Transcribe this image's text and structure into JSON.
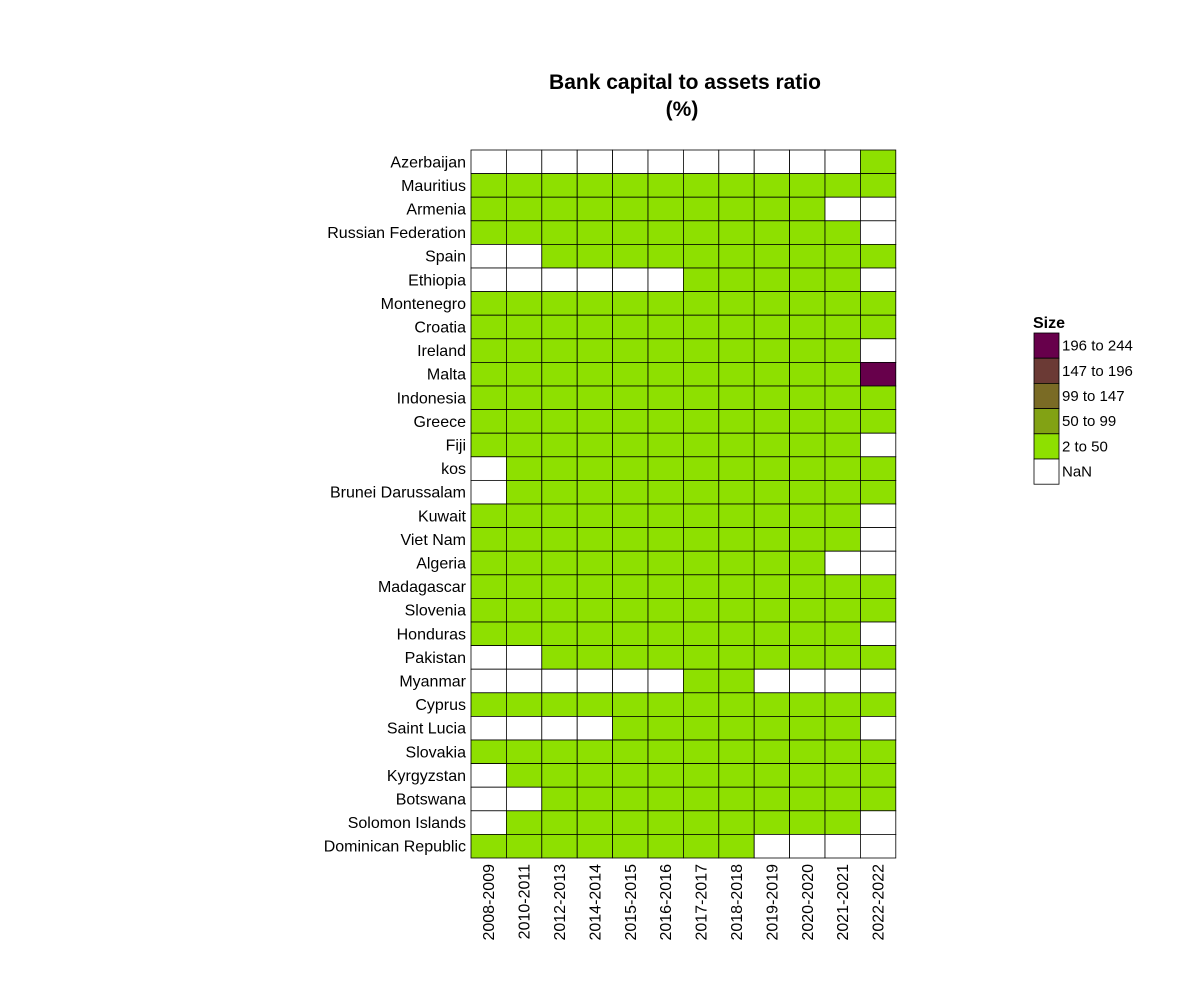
{
  "chart_data": {
    "type": "heatmap",
    "title": "Bank capital to assets ratio",
    "subtitle": "(%)",
    "columns": [
      "2008-2009",
      "2010-2011",
      "2012-2013",
      "2014-2014",
      "2015-2015",
      "2016-2016",
      "2017-2017",
      "2018-2018",
      "2019-2019",
      "2020-2020",
      "2021-2021",
      "2022-2022"
    ],
    "rows": [
      "Azerbaijan",
      "Mauritius",
      "Armenia",
      "Russian Federation",
      "Spain",
      "Ethiopia",
      "Montenegro",
      "Croatia",
      "Ireland",
      "Malta",
      "Indonesia",
      "Greece",
      "Fiji",
      "kos",
      "Brunei Darussalam",
      "Kuwait",
      "Viet Nam",
      "Algeria",
      "Madagascar",
      "Slovenia",
      "Honduras",
      "Pakistan",
      "Myanmar",
      "Cyprus",
      "Saint Lucia",
      "Slovakia",
      "Kyrgyzstan",
      "Botswana",
      "Solomon Islands",
      "Dominican Republic"
    ],
    "cells": [
      [
        "NaN",
        "NaN",
        "NaN",
        "NaN",
        "NaN",
        "NaN",
        "NaN",
        "NaN",
        "NaN",
        "NaN",
        "NaN",
        "2 to 50"
      ],
      [
        "2 to 50",
        "2 to 50",
        "2 to 50",
        "2 to 50",
        "2 to 50",
        "2 to 50",
        "2 to 50",
        "2 to 50",
        "2 to 50",
        "2 to 50",
        "2 to 50",
        "2 to 50"
      ],
      [
        "2 to 50",
        "2 to 50",
        "2 to 50",
        "2 to 50",
        "2 to 50",
        "2 to 50",
        "2 to 50",
        "2 to 50",
        "2 to 50",
        "2 to 50",
        "NaN",
        "NaN"
      ],
      [
        "2 to 50",
        "2 to 50",
        "2 to 50",
        "2 to 50",
        "2 to 50",
        "2 to 50",
        "2 to 50",
        "2 to 50",
        "2 to 50",
        "2 to 50",
        "2 to 50",
        "NaN"
      ],
      [
        "NaN",
        "NaN",
        "2 to 50",
        "2 to 50",
        "2 to 50",
        "2 to 50",
        "2 to 50",
        "2 to 50",
        "2 to 50",
        "2 to 50",
        "2 to 50",
        "2 to 50"
      ],
      [
        "NaN",
        "NaN",
        "NaN",
        "NaN",
        "NaN",
        "NaN",
        "2 to 50",
        "2 to 50",
        "2 to 50",
        "2 to 50",
        "2 to 50",
        "NaN"
      ],
      [
        "2 to 50",
        "2 to 50",
        "2 to 50",
        "2 to 50",
        "2 to 50",
        "2 to 50",
        "2 to 50",
        "2 to 50",
        "2 to 50",
        "2 to 50",
        "2 to 50",
        "2 to 50"
      ],
      [
        "2 to 50",
        "2 to 50",
        "2 to 50",
        "2 to 50",
        "2 to 50",
        "2 to 50",
        "2 to 50",
        "2 to 50",
        "2 to 50",
        "2 to 50",
        "2 to 50",
        "2 to 50"
      ],
      [
        "2 to 50",
        "2 to 50",
        "2 to 50",
        "2 to 50",
        "2 to 50",
        "2 to 50",
        "2 to 50",
        "2 to 50",
        "2 to 50",
        "2 to 50",
        "2 to 50",
        "NaN"
      ],
      [
        "2 to 50",
        "2 to 50",
        "2 to 50",
        "2 to 50",
        "2 to 50",
        "2 to 50",
        "2 to 50",
        "2 to 50",
        "2 to 50",
        "2 to 50",
        "2 to 50",
        "196 to 244"
      ],
      [
        "2 to 50",
        "2 to 50",
        "2 to 50",
        "2 to 50",
        "2 to 50",
        "2 to 50",
        "2 to 50",
        "2 to 50",
        "2 to 50",
        "2 to 50",
        "2 to 50",
        "2 to 50"
      ],
      [
        "2 to 50",
        "2 to 50",
        "2 to 50",
        "2 to 50",
        "2 to 50",
        "2 to 50",
        "2 to 50",
        "2 to 50",
        "2 to 50",
        "2 to 50",
        "2 to 50",
        "2 to 50"
      ],
      [
        "2 to 50",
        "2 to 50",
        "2 to 50",
        "2 to 50",
        "2 to 50",
        "2 to 50",
        "2 to 50",
        "2 to 50",
        "2 to 50",
        "2 to 50",
        "2 to 50",
        "NaN"
      ],
      [
        "NaN",
        "2 to 50",
        "2 to 50",
        "2 to 50",
        "2 to 50",
        "2 to 50",
        "2 to 50",
        "2 to 50",
        "2 to 50",
        "2 to 50",
        "2 to 50",
        "2 to 50"
      ],
      [
        "NaN",
        "2 to 50",
        "2 to 50",
        "2 to 50",
        "2 to 50",
        "2 to 50",
        "2 to 50",
        "2 to 50",
        "2 to 50",
        "2 to 50",
        "2 to 50",
        "2 to 50"
      ],
      [
        "2 to 50",
        "2 to 50",
        "2 to 50",
        "2 to 50",
        "2 to 50",
        "2 to 50",
        "2 to 50",
        "2 to 50",
        "2 to 50",
        "2 to 50",
        "2 to 50",
        "NaN"
      ],
      [
        "2 to 50",
        "2 to 50",
        "2 to 50",
        "2 to 50",
        "2 to 50",
        "2 to 50",
        "2 to 50",
        "2 to 50",
        "2 to 50",
        "2 to 50",
        "2 to 50",
        "NaN"
      ],
      [
        "2 to 50",
        "2 to 50",
        "2 to 50",
        "2 to 50",
        "2 to 50",
        "2 to 50",
        "2 to 50",
        "2 to 50",
        "2 to 50",
        "2 to 50",
        "NaN",
        "NaN"
      ],
      [
        "2 to 50",
        "2 to 50",
        "2 to 50",
        "2 to 50",
        "2 to 50",
        "2 to 50",
        "2 to 50",
        "2 to 50",
        "2 to 50",
        "2 to 50",
        "2 to 50",
        "2 to 50"
      ],
      [
        "2 to 50",
        "2 to 50",
        "2 to 50",
        "2 to 50",
        "2 to 50",
        "2 to 50",
        "2 to 50",
        "2 to 50",
        "2 to 50",
        "2 to 50",
        "2 to 50",
        "2 to 50"
      ],
      [
        "2 to 50",
        "2 to 50",
        "2 to 50",
        "2 to 50",
        "2 to 50",
        "2 to 50",
        "2 to 50",
        "2 to 50",
        "2 to 50",
        "2 to 50",
        "2 to 50",
        "NaN"
      ],
      [
        "NaN",
        "NaN",
        "2 to 50",
        "2 to 50",
        "2 to 50",
        "2 to 50",
        "2 to 50",
        "2 to 50",
        "2 to 50",
        "2 to 50",
        "2 to 50",
        "2 to 50"
      ],
      [
        "NaN",
        "NaN",
        "NaN",
        "NaN",
        "NaN",
        "NaN",
        "2 to 50",
        "2 to 50",
        "NaN",
        "NaN",
        "NaN",
        "NaN"
      ],
      [
        "2 to 50",
        "2 to 50",
        "2 to 50",
        "2 to 50",
        "2 to 50",
        "2 to 50",
        "2 to 50",
        "2 to 50",
        "2 to 50",
        "2 to 50",
        "2 to 50",
        "2 to 50"
      ],
      [
        "NaN",
        "NaN",
        "NaN",
        "NaN",
        "2 to 50",
        "2 to 50",
        "2 to 50",
        "2 to 50",
        "2 to 50",
        "2 to 50",
        "2 to 50",
        "NaN"
      ],
      [
        "2 to 50",
        "2 to 50",
        "2 to 50",
        "2 to 50",
        "2 to 50",
        "2 to 50",
        "2 to 50",
        "2 to 50",
        "2 to 50",
        "2 to 50",
        "2 to 50",
        "2 to 50"
      ],
      [
        "NaN",
        "2 to 50",
        "2 to 50",
        "2 to 50",
        "2 to 50",
        "2 to 50",
        "2 to 50",
        "2 to 50",
        "2 to 50",
        "2 to 50",
        "2 to 50",
        "2 to 50"
      ],
      [
        "NaN",
        "NaN",
        "2 to 50",
        "2 to 50",
        "2 to 50",
        "2 to 50",
        "2 to 50",
        "2 to 50",
        "2 to 50",
        "2 to 50",
        "2 to 50",
        "2 to 50"
      ],
      [
        "NaN",
        "2 to 50",
        "2 to 50",
        "2 to 50",
        "2 to 50",
        "2 to 50",
        "2 to 50",
        "2 to 50",
        "2 to 50",
        "2 to 50",
        "2 to 50",
        "NaN"
      ],
      [
        "2 to 50",
        "2 to 50",
        "2 to 50",
        "2 to 50",
        "2 to 50",
        "2 to 50",
        "2 to 50",
        "2 to 50",
        "NaN",
        "NaN",
        "NaN",
        "NaN"
      ]
    ],
    "legend": {
      "title": "Size",
      "position": "right",
      "items": [
        {
          "label": "196 to 244",
          "color": "#67004b"
        },
        {
          "label": "147 to 196",
          "color": "#6b3a35"
        },
        {
          "label": "99 to 147",
          "color": "#7a6b25"
        },
        {
          "label": "50 to 99",
          "color": "#82a214"
        },
        {
          "label": "2 to 50",
          "color": "#8ee000"
        },
        {
          "label": "NaN",
          "color": "#ffffff"
        }
      ]
    },
    "grid": false
  }
}
